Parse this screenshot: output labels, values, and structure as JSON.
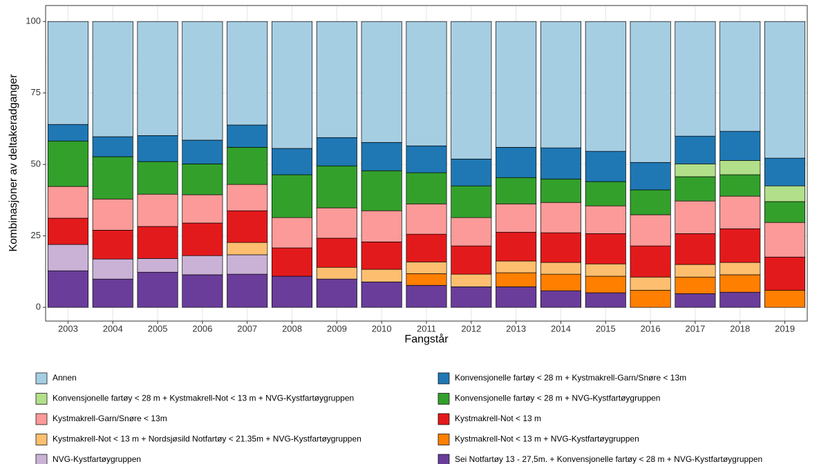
{
  "chart_data": {
    "type": "stacked_bar",
    "xlabel": "Fangstår",
    "ylabel": "Kombinasjoner av deltakeradganger",
    "categories": [
      "2003",
      "2004",
      "2005",
      "2006",
      "2007",
      "2008",
      "2009",
      "2010",
      "2011",
      "2012",
      "2013",
      "2014",
      "2015",
      "2016",
      "2017",
      "2018",
      "2019"
    ],
    "ylim": [
      -4.8,
      105.6
    ],
    "yticks": [
      0,
      25,
      50,
      75,
      100
    ],
    "grid": true,
    "legend": "bottom",
    "series": [
      {
        "name": "Annen",
        "color": "#a6cee3",
        "values": [
          36,
          40.3,
          39.9,
          41.5,
          36.2,
          44.4,
          40.6,
          42.3,
          43.5,
          48.1,
          44,
          44.2,
          45.4,
          49.3,
          40.1,
          38.4,
          47.8
        ]
      },
      {
        "name": "Konvensjonelle fartøy < 28 m + Kystmakrell-Garn/Snøre < 13m",
        "color": "#1f78b4",
        "values": [
          5.8,
          7,
          9.1,
          8.3,
          7.8,
          9.2,
          9.9,
          9.9,
          9.4,
          9.4,
          10.6,
          10.9,
          10.6,
          9.6,
          9.7,
          10.2,
          9.7
        ]
      },
      {
        "name": "Konvensjonelle fartøy < 28 m + Kystmakrell-Not < 13 m + NVG-Kystfartøygruppen",
        "color": "#b2df8a",
        "values": [
          null,
          null,
          null,
          null,
          null,
          null,
          null,
          null,
          null,
          null,
          null,
          null,
          null,
          null,
          4.5,
          5,
          5.5
        ]
      },
      {
        "name": "Konvensjonelle fartøy < 28 m + NVG-Kystfartøygruppen",
        "color": "#33a02c",
        "values": [
          15.9,
          14.8,
          11.4,
          10.8,
          13,
          15,
          14.7,
          14,
          10.9,
          11.1,
          9.2,
          8.2,
          8.5,
          8.7,
          8.5,
          7.5,
          7.3
        ]
      },
      {
        "name": "Kystmakrell-Garn/Snøre < 13m",
        "color": "#fb9a99",
        "values": [
          11.1,
          10.9,
          11.3,
          9.9,
          9.2,
          10.6,
          10.6,
          10.9,
          10.6,
          9.9,
          9.9,
          10.6,
          9.7,
          10.9,
          11.4,
          11.4,
          12.1
        ]
      },
      {
        "name": "Kystmakrell-Not < 13 m",
        "color": "#e31a1c",
        "values": [
          9.2,
          10.1,
          11.2,
          11.4,
          11.1,
          9.9,
          10.2,
          9.6,
          9.7,
          9.9,
          10.1,
          10.4,
          10.6,
          10.9,
          10.8,
          11.8,
          11.6
        ]
      },
      {
        "name": "Kystmakrell-Not < 13 m + Nordsjøsild Notfartøy < 21.35m + NVG-Kystfartøygruppen",
        "color": "#fdbf6f",
        "values": [
          null,
          null,
          null,
          null,
          4.3,
          null,
          4.1,
          4.4,
          4.1,
          4.4,
          4.1,
          4.1,
          4.3,
          4.6,
          4.4,
          4.3,
          null
        ]
      },
      {
        "name": "Kystmakrell-Not < 13 m + NVG-Kystfartøygruppen",
        "color": "#ff7f00",
        "values": [
          null,
          null,
          null,
          null,
          null,
          null,
          null,
          null,
          4.1,
          null,
          4.9,
          5.8,
          5.8,
          6,
          5.8,
          6.1,
          6
        ]
      },
      {
        "name": "NVG-Kystfartøygruppen",
        "color": "#cab2d6",
        "values": [
          9.2,
          7,
          4.8,
          6.7,
          6.8,
          null,
          null,
          null,
          null,
          null,
          null,
          null,
          null,
          null,
          null,
          null,
          null
        ]
      },
      {
        "name": "Sei Notfartøy 13 - 27,5m. + Konvensjonelle fartøy < 28 m + NVG-Kystfartøygruppen",
        "color": "#6a3d9a",
        "values": [
          12.8,
          9.9,
          12.3,
          11.4,
          11.6,
          10.9,
          9.9,
          8.9,
          7.7,
          7.2,
          7.2,
          5.8,
          5.1,
          null,
          4.8,
          5.3,
          null
        ]
      }
    ]
  }
}
